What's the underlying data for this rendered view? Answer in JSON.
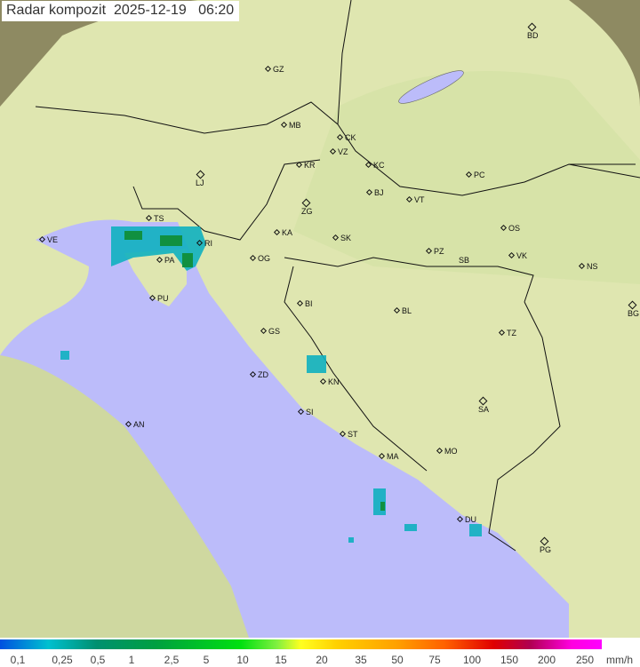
{
  "title": "Radar kompozit  2025-12-19   06:20",
  "cities": [
    "GZ",
    "MB",
    "CK",
    "VZ",
    "KR",
    "KC",
    "BD",
    "LJ",
    "PC",
    "ZG",
    "BJ",
    "VT",
    "VE",
    "TS",
    "RI",
    "KA",
    "SK",
    "OS",
    "NS",
    "VK",
    "PZ",
    "SB",
    "PA",
    "OG",
    "PU",
    "BI",
    "BL",
    "BG",
    "GS",
    "TZ",
    "ZD",
    "KN",
    "SA",
    "AN",
    "SI",
    "ST",
    "MA",
    "MO",
    "DU",
    "PG"
  ],
  "legend": {
    "ticks": [
      "0,1",
      "0,25",
      "0,5",
      "1",
      "2,5",
      "5",
      "10",
      "15",
      "20",
      "35",
      "50",
      "75",
      "100",
      "150",
      "200",
      "250"
    ],
    "unit": "mm/h"
  },
  "colors": {
    "sea": "#bcbcfa",
    "land": "#dfe6b0",
    "outside": "#8e8a62"
  }
}
